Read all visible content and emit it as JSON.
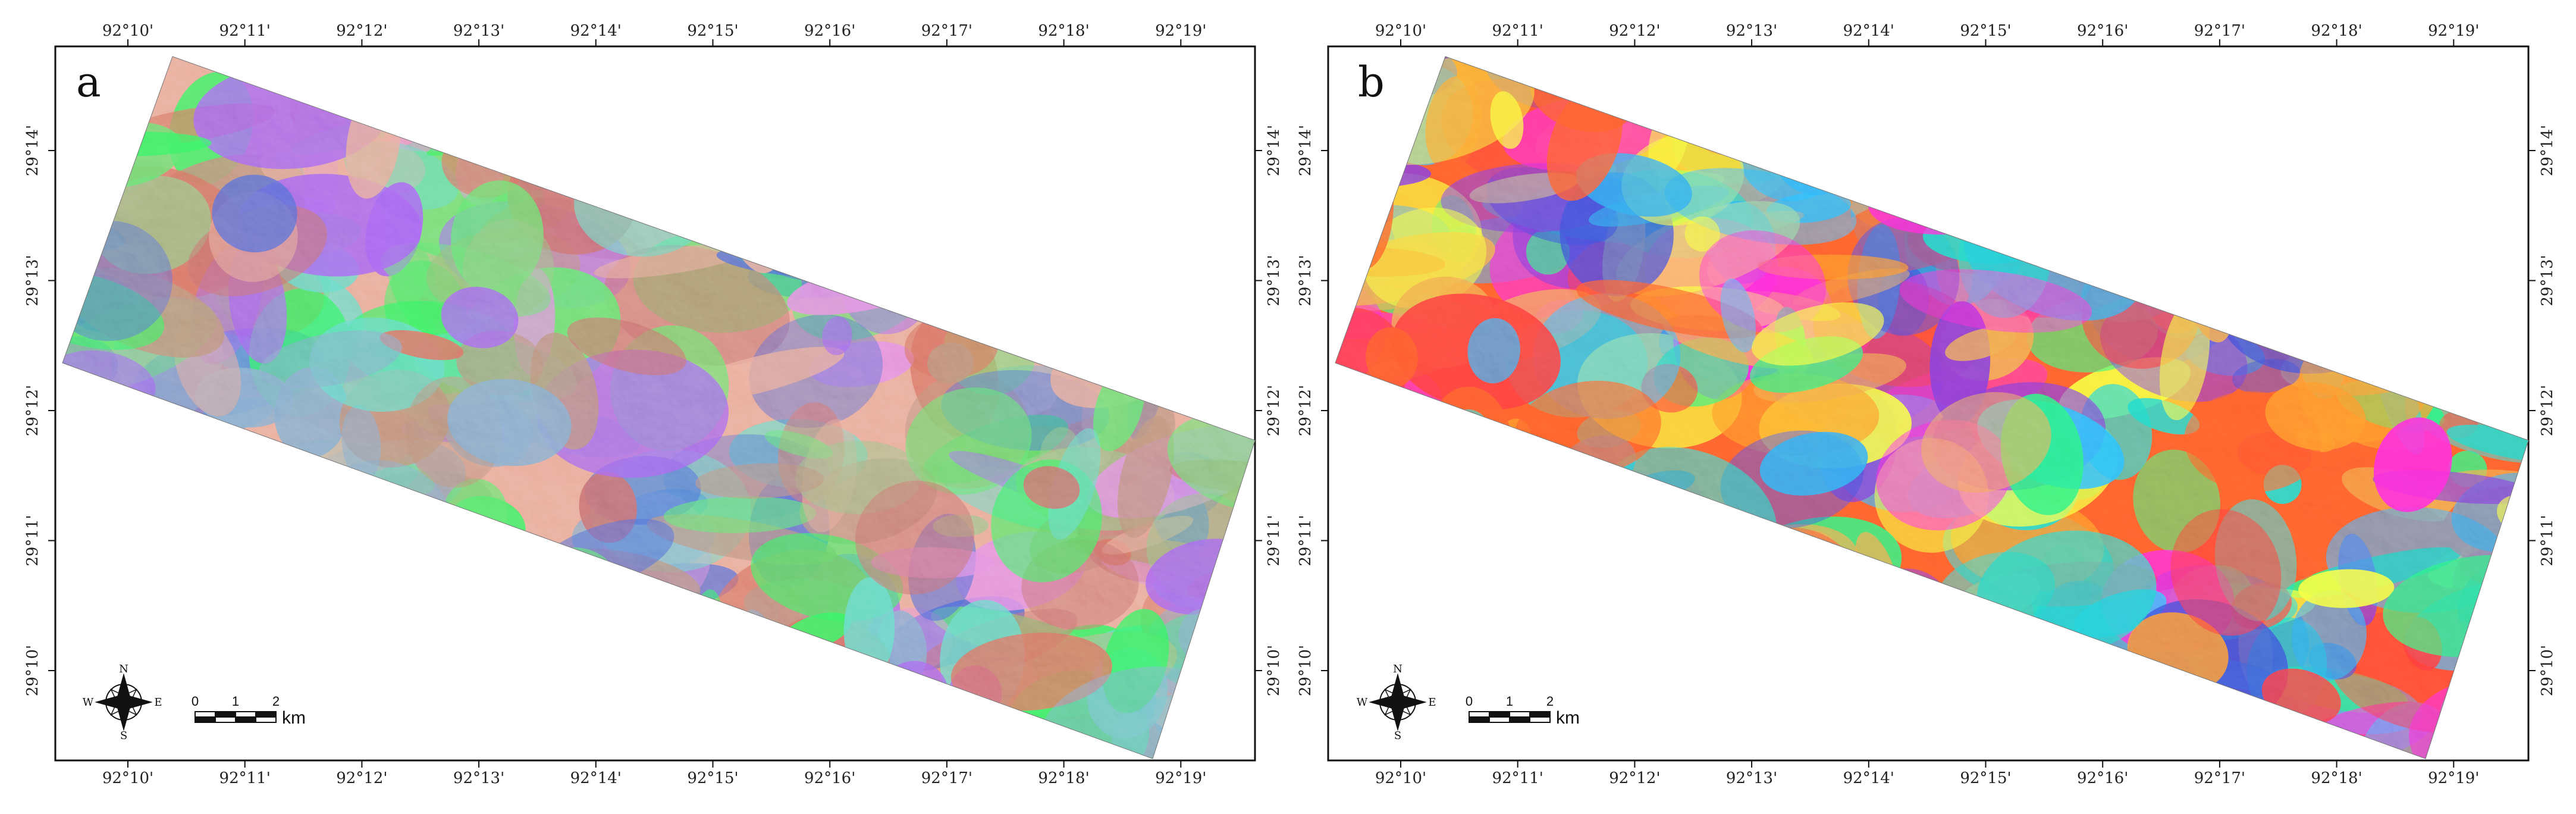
{
  "panels": [
    {
      "label": "a",
      "lon_ticks": [
        "92°10'",
        "92°11'",
        "92°12'",
        "92°13'",
        "92°14'",
        "92°15'",
        "92°16'",
        "92°17'",
        "92°18'",
        "92°19'"
      ],
      "lat_ticks": [
        "29°14'",
        "29°13'",
        "29°12'",
        "29°11'",
        "29°10'"
      ],
      "compass": {
        "n": "N",
        "s": "S",
        "e": "E",
        "w": "W"
      },
      "scale": {
        "ticks": [
          "0",
          "1",
          "2"
        ],
        "unit": "km"
      },
      "palette": [
        "#e7a592",
        "#7ea6c9",
        "#5de46b",
        "#35f25e",
        "#c46a6a",
        "#e287e0",
        "#9f5ff0",
        "#d66b5e",
        "#62d7c4",
        "#4f67d4",
        "#8dc27f",
        "#b78a74"
      ]
    },
    {
      "label": "b",
      "lon_ticks": [
        "92°10'",
        "92°11'",
        "92°12'",
        "92°13'",
        "92°14'",
        "92°15'",
        "92°16'",
        "92°17'",
        "92°18'",
        "92°19'"
      ],
      "lat_ticks": [
        "29°14'",
        "29°13'",
        "29°12'",
        "29°11'",
        "29°10'"
      ],
      "compass": {
        "n": "N",
        "s": "S",
        "e": "E",
        "w": "W"
      },
      "scale": {
        "ticks": [
          "0",
          "1",
          "2"
        ],
        "unit": "km"
      },
      "palette": [
        "#ff5a2a",
        "#ff8f2a",
        "#2fa6f0",
        "#29b9ff",
        "#f7ff3d",
        "#29f277",
        "#ff2ad9",
        "#3a4bd8",
        "#7b3ad8",
        "#ff3b3b",
        "#f0a34a",
        "#1fd6c6"
      ]
    }
  ]
}
